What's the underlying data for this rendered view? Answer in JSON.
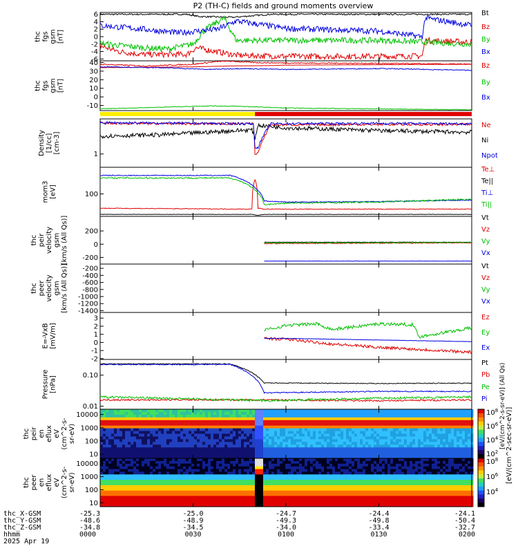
{
  "title": "P2 (TH-C) fields and ground moments overview",
  "colors": {
    "black": "#000000",
    "red": "#e00000",
    "green": "#00c000",
    "blue": "#0000e0",
    "yellow": "#ffee00",
    "mode_red": "#e00000"
  },
  "chart_data": [
    {
      "type": "line",
      "id": "fgs_small",
      "ylabel": [
        "thc",
        "fgs",
        "gsm",
        "[nT]"
      ],
      "yticks": [
        "6",
        "4",
        "2",
        "0",
        "-2",
        "-4",
        "-6"
      ],
      "ylim": [
        -6.5,
        6.5
      ],
      "legend": [
        {
          "name": "Bt",
          "color": "#000000"
        },
        {
          "name": "Bz",
          "color": "#e00000"
        },
        {
          "name": "By",
          "color": "#00c000"
        },
        {
          "name": "Bx",
          "color": "#0000e0"
        }
      ],
      "series": [
        {
          "name": "Bt",
          "color": "#000000",
          "x": [
            0,
            28,
            32,
            43,
            55,
            64,
            90,
            120
          ],
          "y": [
            6,
            6,
            5.4,
            5.2,
            6,
            6,
            6,
            6
          ],
          "noise": 0.2
        },
        {
          "name": "Bz",
          "color": "#e00000",
          "x": [
            0,
            6,
            14,
            28,
            31,
            44,
            60,
            90,
            104,
            105,
            120
          ],
          "y": [
            -2.5,
            -4,
            -4.8,
            -4.8,
            -3,
            -5,
            -5.3,
            -5.3,
            -5.2,
            -1,
            -1.5
          ],
          "noise": 0.8
        },
        {
          "name": "By",
          "color": "#00c000",
          "x": [
            0,
            14,
            22,
            30,
            34,
            40,
            44,
            60,
            90,
            120
          ],
          "y": [
            -1.8,
            -3,
            -3.3,
            -2,
            2,
            5,
            -1,
            -1,
            -1,
            -2
          ],
          "noise": 0.8
        },
        {
          "name": "Bx",
          "color": "#0000e0",
          "x": [
            0,
            14,
            25,
            38,
            44,
            60,
            90,
            104,
            105,
            120
          ],
          "y": [
            3,
            2,
            1,
            2,
            4.2,
            2.2,
            1.5,
            0,
            5,
            3
          ],
          "noise": 0.8
        }
      ]
    },
    {
      "type": "line",
      "id": "fgs_large",
      "ylabel": [
        "thc",
        "fgs",
        "gsm",
        "[nT]"
      ],
      "yticks": [
        "40",
        "30",
        "20",
        "10",
        "0",
        "-10"
      ],
      "ylim": [
        -16,
        42
      ],
      "legend": [
        {
          "name": "Bz",
          "color": "#e00000"
        },
        {
          "name": "By",
          "color": "#00c000"
        },
        {
          "name": "Bx",
          "color": "#0000e0"
        }
      ],
      "series": [
        {
          "name": "Bz",
          "color": "#e00000",
          "x": [
            0,
            15,
            30,
            40,
            50,
            60,
            90,
            120
          ],
          "y": [
            38,
            36,
            38,
            42,
            40,
            39.5,
            39,
            38
          ],
          "noise": 0.7
        },
        {
          "name": "Bz_model",
          "color": "#e00000",
          "x": [
            0,
            30,
            42,
            55,
            60,
            120
          ],
          "y": [
            34,
            35,
            36,
            36.5,
            37,
            38
          ],
          "noise": 0
        },
        {
          "name": "By",
          "color": "#00c000",
          "x": [
            0,
            20,
            35,
            45,
            60,
            90,
            120
          ],
          "y": [
            -14,
            -12,
            -10.5,
            -11,
            -13,
            -14,
            -15
          ],
          "noise": 0.4
        },
        {
          "name": "Bx",
          "color": "#0000e0",
          "x": [
            0,
            20,
            35,
            45,
            60,
            90,
            120
          ],
          "y": [
            35,
            34,
            32,
            33,
            32,
            33,
            31
          ],
          "noise": 0.5
        }
      ]
    },
    {
      "type": "line",
      "id": "density",
      "log": true,
      "ylabel": [
        "Density",
        "[1/cc]",
        "[cm-3]"
      ],
      "yticks": [
        "1"
      ],
      "ylim": [
        0.8,
        1.8
      ],
      "legend": [
        {
          "name": "Ne",
          "color": "#e00000"
        },
        {
          "name": "Ni",
          "color": "#000000"
        },
        {
          "name": "Npot",
          "color": "#0000e0"
        }
      ],
      "series": [
        {
          "name": "Ne",
          "color": "#e00000",
          "x": [
            0,
            30,
            49.5,
            50,
            51,
            55,
            90,
            120
          ],
          "y": [
            1.67,
            1.66,
            1.66,
            1.0,
            1.02,
            1.63,
            1.64,
            1.64
          ],
          "noise": 0.02
        },
        {
          "name": "Ni",
          "color": "#000000",
          "x": [
            0,
            20,
            30,
            49,
            50,
            51,
            60,
            90,
            120
          ],
          "y": [
            1.35,
            1.38,
            1.42,
            1.5,
            1.3,
            1.62,
            1.55,
            1.48,
            1.44
          ],
          "noise": 0.035
        },
        {
          "name": "Npot",
          "color": "#0000e0",
          "x": [
            0,
            30,
            49.5,
            50,
            51,
            55,
            90,
            120
          ],
          "y": [
            1.69,
            1.67,
            1.66,
            1.1,
            1.12,
            1.66,
            1.67,
            1.66
          ],
          "noise": 0.02
        }
      ]
    },
    {
      "type": "line",
      "id": "temp",
      "log": true,
      "ylabel": [
        "mom3",
        "[eV]"
      ],
      "yticks": [
        "100"
      ],
      "ylim": [
        8,
        2000
      ],
      "legend": [
        {
          "name": "Te⊥",
          "color": "#e00000"
        },
        {
          "name": "Te||",
          "color": "#000000"
        },
        {
          "name": "Ti⊥",
          "color": "#0000e0"
        },
        {
          "name": "Ti||",
          "color": "#00c000"
        }
      ],
      "series": [
        {
          "name": "Te⊥",
          "color": "#e00000",
          "x": [
            0,
            49,
            50,
            51,
            53,
            120
          ],
          "y": [
            20,
            18,
            500,
            20,
            18,
            18
          ],
          "noise": 0.04
        },
        {
          "name": "Te||",
          "color": "#000000",
          "x": [
            0,
            49,
            51,
            53,
            120
          ],
          "y": [
            10,
            10,
            9,
            10,
            10
          ],
          "noise": 0.02
        },
        {
          "name": "Ti⊥",
          "color": "#0000e0",
          "x": [
            0,
            42,
            50,
            53,
            60,
            90,
            120
          ],
          "y": [
            800,
            800,
            200,
            45,
            40,
            42,
            50
          ],
          "noise": 0.05
        },
        {
          "name": "Ti||",
          "color": "#00c000",
          "x": [
            0,
            42,
            50,
            53,
            60,
            90,
            120
          ],
          "y": [
            600,
            600,
            150,
            30,
            35,
            40,
            55
          ],
          "noise": 0.08
        }
      ]
    },
    {
      "type": "line",
      "id": "pvel_i",
      "ylabel": [
        "thc",
        "peir",
        "velocity",
        "gsm",
        "[km/s (All Qs)]"
      ],
      "yticks": [
        "200",
        "0",
        "-200"
      ],
      "ylim": [
        -300,
        420
      ],
      "legend": [
        {
          "name": "Vt",
          "color": "#000000"
        },
        {
          "name": "Vz",
          "color": "#e00000"
        },
        {
          "name": "Vy",
          "color": "#00c000"
        },
        {
          "name": "Vx",
          "color": "#0000e0"
        }
      ],
      "series": [
        {
          "name": "Vt",
          "color": "#000000",
          "x": [
            53,
            120
          ],
          "y": [
            30,
            30
          ],
          "noise": 3
        },
        {
          "name": "Vz",
          "color": "#e00000",
          "x": [
            53,
            120
          ],
          "y": [
            10,
            20
          ],
          "noise": 6
        },
        {
          "name": "Vy",
          "color": "#00c000",
          "x": [
            53,
            120
          ],
          "y": [
            20,
            25
          ],
          "noise": 6
        },
        {
          "name": "Vx",
          "color": "#0000e0",
          "x": [
            53,
            120
          ],
          "y": [
            -255,
            -255
          ],
          "noise": 2
        }
      ]
    },
    {
      "type": "line",
      "id": "pvel_e",
      "ylabel": [
        "thc",
        "peer",
        "velocity",
        "gsm",
        "[km/s (All Qs)]"
      ],
      "yticks": [
        "-200",
        "-400",
        "-600",
        "-800",
        "-1000",
        "-1200",
        "-1400"
      ],
      "ylim": [
        -1450,
        -80
      ],
      "legend": [
        {
          "name": "Vt",
          "color": "#000000"
        },
        {
          "name": "Vz",
          "color": "#e00000"
        },
        {
          "name": "Vy",
          "color": "#00c000"
        },
        {
          "name": "Vx",
          "color": "#0000e0"
        }
      ],
      "series": []
    },
    {
      "type": "line",
      "id": "efield",
      "ylabel": [
        "E=-VxB",
        "[mV/m]"
      ],
      "yticks": [
        "3",
        "2",
        "1",
        "0",
        "-1",
        "-2"
      ],
      "ylim": [
        -2.1,
        3.7
      ],
      "legend": [
        {
          "name": "Ez",
          "color": "#e00000"
        },
        {
          "name": "Ey",
          "color": "#00c000"
        },
        {
          "name": "Ex",
          "color": "#0000e0"
        }
      ],
      "series": [
        {
          "name": "Ez",
          "color": "#e00000",
          "x": [
            53,
            60,
            75,
            90,
            105,
            120
          ],
          "y": [
            0.5,
            0.4,
            -0.2,
            -0.6,
            -0.9,
            -1.2
          ],
          "noise": 0.18
        },
        {
          "name": "Ey",
          "color": "#00c000",
          "x": [
            53,
            60,
            70,
            75,
            90,
            101,
            103,
            120
          ],
          "y": [
            1.5,
            2.1,
            2.3,
            1.6,
            2.3,
            2.2,
            0.7,
            1.8
          ],
          "noise": 0.2
        },
        {
          "name": "Ex",
          "color": "#0000e0",
          "x": [
            53,
            60,
            90,
            120
          ],
          "y": [
            0.5,
            0.5,
            0.3,
            0.1
          ],
          "noise": 0.02
        }
      ]
    },
    {
      "type": "line",
      "id": "pressure",
      "log": true,
      "ylabel": [
        "Pressure",
        "[nPa]"
      ],
      "yticks": [
        "0.10",
        "0.01"
      ],
      "ylim": [
        0.008,
        0.32
      ],
      "legend": [
        {
          "name": "Pt",
          "color": "#000000"
        },
        {
          "name": "Pb",
          "color": "#e00000"
        },
        {
          "name": "Pe",
          "color": "#00c000"
        },
        {
          "name": "Pi",
          "color": "#0000e0"
        }
      ],
      "series": [
        {
          "name": "Pt",
          "color": "#000000",
          "x": [
            0,
            42,
            53,
            90,
            120
          ],
          "y": [
            0.23,
            0.23,
            0.056,
            0.054,
            0.055
          ],
          "noise": 0.03
        },
        {
          "name": "Pb",
          "color": "#e00000",
          "x": [
            0,
            53,
            90,
            120
          ],
          "y": [
            0.016,
            0.016,
            0.015,
            0.016
          ],
          "noise": 0.06
        },
        {
          "name": "Pe",
          "color": "#00c000",
          "x": [
            0,
            53,
            90,
            120
          ],
          "y": [
            0.02,
            0.015,
            0.018,
            0.02
          ],
          "noise": 0.08
        },
        {
          "name": "Pi",
          "color": "#0000e0",
          "x": [
            0,
            42,
            53,
            90,
            120
          ],
          "y": [
            0.22,
            0.22,
            0.027,
            0.03,
            0.03
          ],
          "noise": 0.04
        }
      ]
    },
    {
      "type": "heatmap",
      "id": "ion_spec",
      "log": true,
      "ylabel": [
        "thc",
        "peir",
        "en",
        "eflux",
        "eV",
        "(cm^2-s-",
        "sr-eV)"
      ],
      "yticks": [
        "10000",
        "1000",
        "100",
        "10"
      ],
      "ylim": [
        5,
        25000
      ],
      "zrange": [
        "10^2",
        "10^8"
      ]
    },
    {
      "type": "heatmap",
      "id": "elec_spec",
      "log": true,
      "ylabel": [
        "thc",
        "peer",
        "en",
        "eflux",
        "eV",
        "(cm^2-s-",
        "sr-eV)"
      ],
      "yticks": [
        "10000",
        "1000",
        "100",
        "10"
      ],
      "ylim": [
        5,
        25000
      ],
      "zrange": [
        "10^4",
        "10^8"
      ]
    }
  ],
  "colorbar": {
    "label": "[eV/(cm^2-sec-sr-eV)]",
    "sublabel": "[eV/(cm^2-s-sr-eV)] (All Qs)",
    "ticks_ion": [
      "10^8",
      "10^6",
      "10^4",
      "10^2"
    ],
    "ticks_elec": [
      "10^8",
      "10^6",
      "10^4"
    ]
  },
  "mode_bar": {
    "segments": [
      {
        "from": 0,
        "to": 50,
        "color": "#ffee00"
      },
      {
        "from": 50,
        "to": 120,
        "color": "#e00000"
      }
    ]
  },
  "x_axis": {
    "xlim": [
      0,
      120
    ],
    "row_labels": [
      "thc_X-GSM",
      "thc_Y-GSM",
      "thc_Z-GSM",
      "hhmm",
      "2025 Apr 19"
    ],
    "ticks": [
      {
        "t": 0,
        "vals": [
          "-25.3",
          "-48.6",
          "-34.8",
          "0000"
        ]
      },
      {
        "t": 30,
        "vals": [
          "-25.0",
          "-48.9",
          "-34.5",
          "0030"
        ]
      },
      {
        "t": 60,
        "vals": [
          "-24.7",
          "-49.3",
          "-34.0",
          "0100"
        ]
      },
      {
        "t": 90,
        "vals": [
          "-24.4",
          "-49.8",
          "-33.4",
          "0130"
        ]
      },
      {
        "t": 120,
        "vals": [
          "-24.1",
          "-50.4",
          "-32.7",
          "0200"
        ]
      }
    ]
  }
}
